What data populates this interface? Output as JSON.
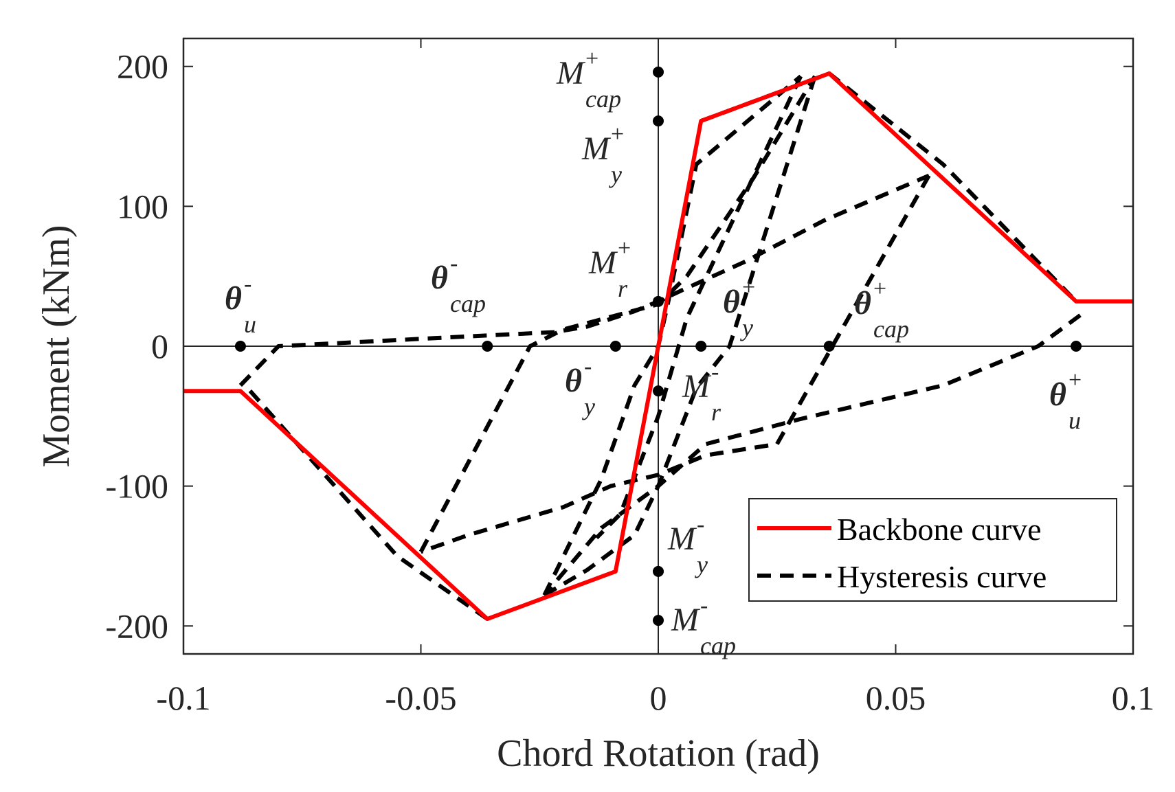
{
  "chart_data": {
    "type": "line",
    "title": "",
    "xlabel": "Chord Rotation (rad)",
    "ylabel": "Moment (kNm)",
    "xlim": [
      -0.1,
      0.1
    ],
    "ylim": [
      -220,
      220
    ],
    "xticks": [
      -0.1,
      -0.05,
      0,
      0.05,
      0.1
    ],
    "xtick_labels": [
      "-0.1",
      "-0.05",
      "0",
      "0.05",
      "0.1"
    ],
    "yticks": [
      -200,
      -100,
      0,
      100,
      200
    ],
    "ytick_labels": [
      "-200",
      "-100",
      "0",
      "100",
      "200"
    ],
    "grid": false,
    "legend_position": "bottom-right",
    "colors": {
      "backbone": "#ff0000",
      "hysteresis": "#000000",
      "points": "#000000",
      "axes": "#262626"
    },
    "series": [
      {
        "name": "Backbone curve",
        "style": "solid",
        "x": [
          -0.1,
          -0.088,
          -0.036,
          -0.009,
          0.0,
          0.009,
          0.036,
          0.088,
          0.1
        ],
        "y": [
          -32,
          -32,
          -195,
          -161,
          0,
          161,
          195,
          32,
          32
        ]
      },
      {
        "name": "Hysteresis curve",
        "style": "dashed",
        "segments": [
          {
            "x": [
              -0.088,
              -0.08,
              -0.04,
              -0.022,
              -0.015,
              -0.005,
              0.0,
              0.005,
              0.018,
              0.035,
              0.057
            ],
            "y": [
              -28,
              0,
              7,
              10,
              14,
              25,
              32,
              40,
              60,
              90,
              122
            ]
          },
          {
            "x": [
              0.057,
              0.025,
              0.01,
              0.0,
              -0.01,
              -0.02,
              -0.04,
              -0.05
            ],
            "y": [
              122,
              -70,
              -78,
              -92,
              -100,
              -115,
              -135,
              -147
            ]
          },
          {
            "x": [
              -0.05,
              -0.027,
              -0.02,
              0.0,
              0.006,
              0.02,
              0.033
            ],
            "y": [
              -147,
              0,
              12,
              30,
              50,
              120,
              193
            ]
          },
          {
            "x": [
              0.033,
              0.015,
              0.008,
              0.0,
              -0.006,
              -0.012,
              -0.024
            ],
            "y": [
              193,
              0,
              -30,
              -100,
              -115,
              -130,
              -178
            ]
          },
          {
            "x": [
              -0.024,
              -0.012,
              -0.005,
              0.0,
              0.002,
              0.008,
              0.03
            ],
            "y": [
              -178,
              -95,
              -28,
              0,
              30,
              130,
              193
            ]
          },
          {
            "x": [
              0.03,
              0.006,
              0.0,
              -0.008,
              -0.013
            ],
            "y": [
              193,
              20,
              -50,
              -120,
              -137
            ]
          },
          {
            "x": [
              -0.036,
              -0.055,
              -0.087
            ],
            "y": [
              -195,
              -150,
              -28
            ]
          },
          {
            "x": [
              -0.024,
              -0.015,
              -0.005,
              0.0,
              0.01,
              0.03,
              0.06,
              0.08,
              0.09
            ],
            "y": [
              -178,
              -160,
              -135,
              -100,
              -70,
              -52,
              -28,
              0,
              25
            ]
          },
          {
            "x": [
              0.009,
              0.036,
              0.06,
              0.088
            ],
            "y": [
              161,
              195,
              130,
              32
            ]
          }
        ]
      }
    ],
    "points": [
      {
        "x": -0.088,
        "y": 0
      },
      {
        "x": -0.036,
        "y": 0
      },
      {
        "x": -0.009,
        "y": 0
      },
      {
        "x": 0.009,
        "y": 0
      },
      {
        "x": 0.036,
        "y": 0
      },
      {
        "x": 0.088,
        "y": 0
      },
      {
        "x": 0,
        "y": 196
      },
      {
        "x": 0,
        "y": 161
      },
      {
        "x": 0,
        "y": 32
      },
      {
        "x": 0,
        "y": -32
      },
      {
        "x": 0,
        "y": -161
      },
      {
        "x": 0,
        "y": -196
      }
    ],
    "annotations": [
      {
        "id": "theta-u-neg",
        "main": "θ",
        "sup": "-",
        "sub": "u",
        "greek": true
      },
      {
        "id": "theta-cap-neg",
        "main": "θ",
        "sup": "-",
        "sub": "cap",
        "greek": true
      },
      {
        "id": "theta-y-neg",
        "main": "θ",
        "sup": "-",
        "sub": "y",
        "greek": true
      },
      {
        "id": "theta-y-pos",
        "main": "θ",
        "sup": "+",
        "sub": "y",
        "greek": true
      },
      {
        "id": "theta-cap-pos",
        "main": "θ",
        "sup": "+",
        "sub": "cap",
        "greek": true
      },
      {
        "id": "theta-u-pos",
        "main": "θ",
        "sup": "+",
        "sub": "u",
        "greek": true
      },
      {
        "id": "m-cap-pos",
        "main": "M",
        "sup": "+",
        "sub": "cap",
        "greek": false
      },
      {
        "id": "m-y-pos",
        "main": "M",
        "sup": "+",
        "sub": "y",
        "greek": false
      },
      {
        "id": "m-r-pos",
        "main": "M",
        "sup": "+",
        "sub": "r",
        "greek": false
      },
      {
        "id": "m-r-neg",
        "main": "M",
        "sup": "-",
        "sub": "r",
        "greek": false
      },
      {
        "id": "m-y-neg",
        "main": "M",
        "sup": "-",
        "sub": "y",
        "greek": false
      },
      {
        "id": "m-cap-neg",
        "main": "M",
        "sup": "-",
        "sub": "cap",
        "greek": false
      }
    ],
    "legend": [
      {
        "label": "Backbone curve",
        "style": "solid"
      },
      {
        "label": "Hysteresis curve",
        "style": "dashed"
      }
    ]
  }
}
